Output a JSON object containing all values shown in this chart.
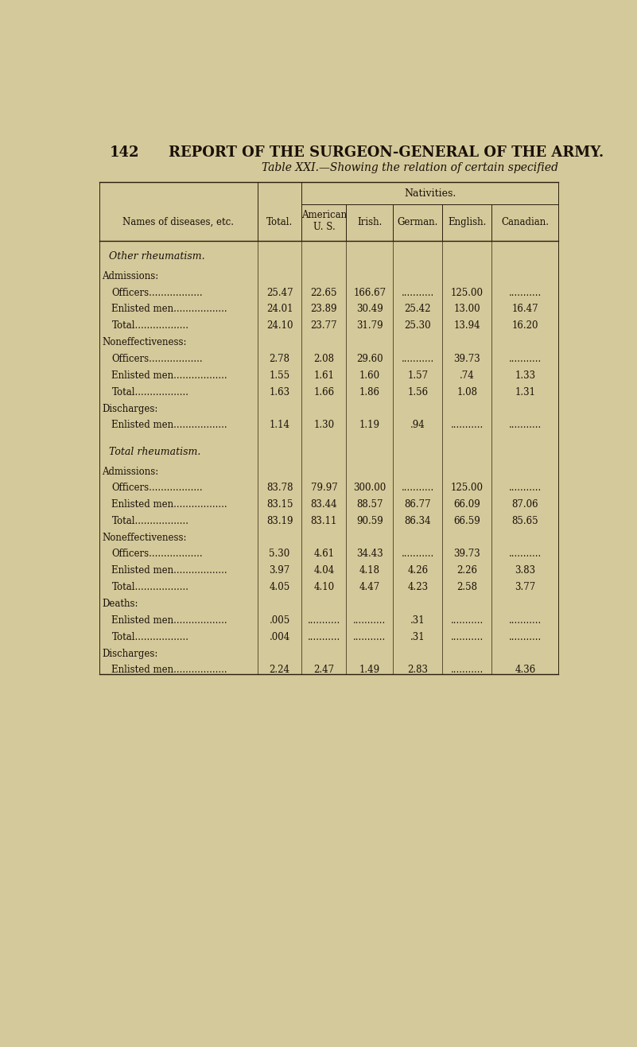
{
  "page_number": "142",
  "page_header": "REPORT OF THE SURGEON-GENERAL OF THE ARMY.",
  "table_title": "Table XXI.—Showing the relation of certain specified",
  "background_color": "#d4c99a",
  "sections": [
    {
      "title": "Other rheumatism.",
      "subsections": [
        {
          "label": "Admissions:",
          "rows": [
            {
              "name": "Officers",
              "values": [
                "25.47",
                "22.65",
                "166.67",
                "...........",
                "125.00",
                "..........."
              ]
            },
            {
              "name": "Enlisted men",
              "values": [
                "24.01",
                "23.89",
                "30.49",
                "25.42",
                "13.00",
                "16.47"
              ]
            },
            {
              "name": "Total",
              "values": [
                "24.10",
                "23.77",
                "31.79",
                "25.30",
                "13.94",
                "16.20"
              ]
            }
          ]
        },
        {
          "label": "Noneffectiveness:",
          "rows": [
            {
              "name": "Officers",
              "values": [
                "2.78",
                "2.08",
                "29.60",
                "...........",
                "39.73",
                "..........."
              ]
            },
            {
              "name": "Enlisted men",
              "values": [
                "1.55",
                "1.61",
                "1.60",
                "1.57",
                ".74",
                "1.33"
              ]
            },
            {
              "name": "Total",
              "values": [
                "1.63",
                "1.66",
                "1.86",
                "1.56",
                "1.08",
                "1.31"
              ]
            }
          ]
        },
        {
          "label": "Discharges:",
          "rows": [
            {
              "name": "Enlisted men",
              "values": [
                "1.14",
                "1.30",
                "1.19",
                ".94",
                "...........",
                "..........."
              ]
            }
          ]
        }
      ]
    },
    {
      "title": "Total rheumatism.",
      "subsections": [
        {
          "label": "Admissions:",
          "rows": [
            {
              "name": "Officers",
              "values": [
                "83.78",
                "79.97",
                "300.00",
                "...........",
                "125.00",
                "..........."
              ]
            },
            {
              "name": "Enlisted men",
              "values": [
                "83.15",
                "83.44",
                "88.57",
                "86.77",
                "66.09",
                "87.06"
              ]
            },
            {
              "name": "Total",
              "values": [
                "83.19",
                "83.11",
                "90.59",
                "86.34",
                "66.59",
                "85.65"
              ]
            }
          ]
        },
        {
          "label": "Noneffectiveness:",
          "rows": [
            {
              "name": "Officers",
              "values": [
                "5.30",
                "4.61",
                "34.43",
                "...........",
                "39.73",
                "..........."
              ]
            },
            {
              "name": "Enlisted men",
              "values": [
                "3.97",
                "4.04",
                "4.18",
                "4.26",
                "2.26",
                "3.83"
              ]
            },
            {
              "name": "Total",
              "values": [
                "4.05",
                "4.10",
                "4.47",
                "4.23",
                "2.58",
                "3.77"
              ]
            }
          ]
        },
        {
          "label": "Deaths:",
          "rows": [
            {
              "name": "Enlisted men",
              "values": [
                ".005",
                "...........",
                "...........",
                ".31",
                "...........",
                "..........."
              ]
            },
            {
              "name": "Total",
              "values": [
                ".004",
                "...........",
                "...........",
                ".31",
                "...........",
                "..........."
              ]
            }
          ]
        },
        {
          "label": "Discharges:",
          "rows": [
            {
              "name": "Enlisted men",
              "values": [
                "2.24",
                "2.47",
                "1.49",
                "2.83",
                "...........",
                "4.36"
              ]
            }
          ]
        }
      ]
    }
  ],
  "text_color": "#1a1008",
  "line_color": "#2a1f0a",
  "font_size_body": 8.5,
  "font_size_title_page": 13,
  "font_size_table_title": 10
}
